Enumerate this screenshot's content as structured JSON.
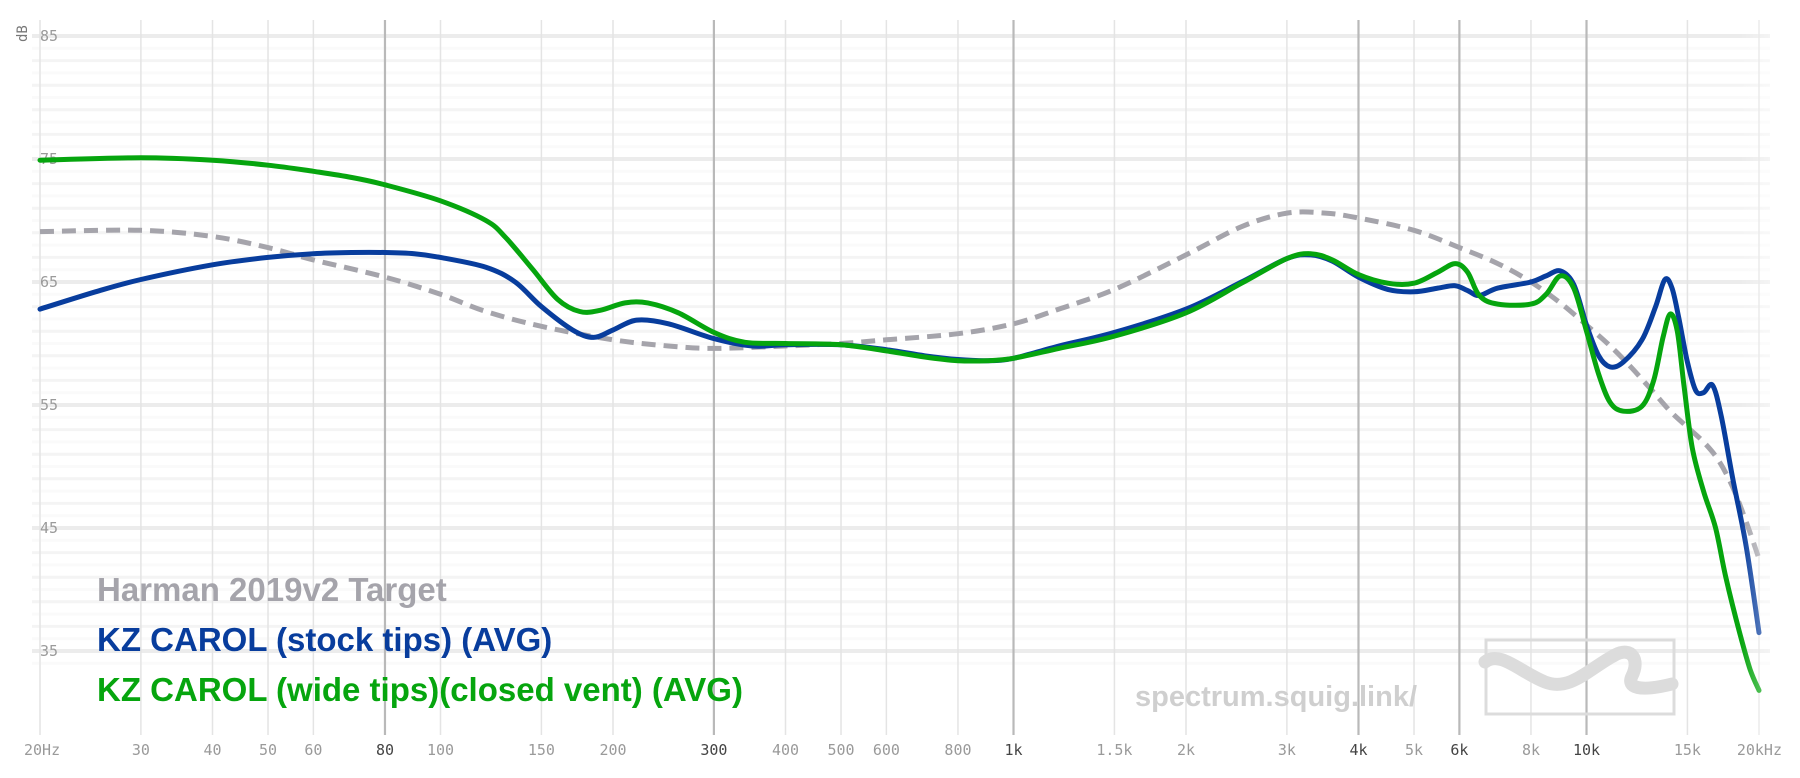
{
  "chart_data": {
    "type": "line",
    "ylabel": "dB",
    "xscale": "log",
    "xlim": [
      20,
      20000
    ],
    "ylim": [
      30,
      86
    ],
    "y_ticks": [
      {
        "value": 85,
        "label": "85"
      },
      {
        "value": 75,
        "label": "75"
      },
      {
        "value": 65,
        "label": "65"
      },
      {
        "value": 55,
        "label": "55"
      },
      {
        "value": 45,
        "label": "45"
      },
      {
        "value": 35,
        "label": "35"
      }
    ],
    "x_ticks": [
      {
        "value": 20,
        "label": "20Hz",
        "major": false
      },
      {
        "value": 30,
        "label": "30",
        "major": false
      },
      {
        "value": 40,
        "label": "40",
        "major": false
      },
      {
        "value": 50,
        "label": "50",
        "major": false
      },
      {
        "value": 60,
        "label": "60",
        "major": false
      },
      {
        "value": 80,
        "label": "80",
        "major": true
      },
      {
        "value": 100,
        "label": "100",
        "major": false
      },
      {
        "value": 150,
        "label": "150",
        "major": false
      },
      {
        "value": 200,
        "label": "200",
        "major": false
      },
      {
        "value": 300,
        "label": "300",
        "major": true
      },
      {
        "value": 400,
        "label": "400",
        "major": false
      },
      {
        "value": 500,
        "label": "500",
        "major": false
      },
      {
        "value": 600,
        "label": "600",
        "major": false
      },
      {
        "value": 800,
        "label": "800",
        "major": false
      },
      {
        "value": 1000,
        "label": "1k",
        "major": true
      },
      {
        "value": 1500,
        "label": "1.5k",
        "major": false
      },
      {
        "value": 2000,
        "label": "2k",
        "major": false
      },
      {
        "value": 3000,
        "label": "3k",
        "major": false
      },
      {
        "value": 4000,
        "label": "4k",
        "major": true
      },
      {
        "value": 5000,
        "label": "5k",
        "major": false
      },
      {
        "value": 6000,
        "label": "6k",
        "major": true
      },
      {
        "value": 8000,
        "label": "8k",
        "major": false
      },
      {
        "value": 10000,
        "label": "10k",
        "major": true
      },
      {
        "value": 15000,
        "label": "15k",
        "major": false
      },
      {
        "value": 20000,
        "label": "20kHz",
        "major": false
      }
    ],
    "legend_placement": "bottom-left",
    "series": [
      {
        "name": "Harman 2019v2 Target",
        "color": "#a5a4ab",
        "dashed": true,
        "points": [
          [
            20,
            69.1
          ],
          [
            30,
            69.2
          ],
          [
            40,
            68.7
          ],
          [
            50,
            67.8
          ],
          [
            60,
            66.8
          ],
          [
            80,
            65.4
          ],
          [
            100,
            64.0
          ],
          [
            120,
            62.6
          ],
          [
            150,
            61.4
          ],
          [
            200,
            60.3
          ],
          [
            250,
            59.8
          ],
          [
            300,
            59.6
          ],
          [
            400,
            59.8
          ],
          [
            500,
            60.0
          ],
          [
            600,
            60.3
          ],
          [
            800,
            60.8
          ],
          [
            1000,
            61.6
          ],
          [
            1200,
            62.8
          ],
          [
            1500,
            64.4
          ],
          [
            2000,
            67.2
          ],
          [
            2500,
            69.5
          ],
          [
            3000,
            70.6
          ],
          [
            3500,
            70.6
          ],
          [
            4000,
            70.2
          ],
          [
            5000,
            69.2
          ],
          [
            6000,
            67.8
          ],
          [
            7000,
            66.5
          ],
          [
            8000,
            65.0
          ],
          [
            9000,
            63.3
          ],
          [
            10000,
            61.5
          ],
          [
            11000,
            59.8
          ],
          [
            12000,
            58.0
          ],
          [
            13000,
            56.2
          ],
          [
            14000,
            54.5
          ],
          [
            15000,
            53.2
          ],
          [
            16000,
            52.0
          ],
          [
            17000,
            50.5
          ],
          [
            18000,
            48.3
          ],
          [
            19000,
            45.5
          ],
          [
            20000,
            42.5
          ]
        ]
      },
      {
        "name": "KZ CAROL (stock tips) (AVG)",
        "color": "#083d9d",
        "dashed": false,
        "points": [
          [
            20,
            62.8
          ],
          [
            25,
            64.2
          ],
          [
            30,
            65.2
          ],
          [
            40,
            66.4
          ],
          [
            50,
            67.0
          ],
          [
            60,
            67.3
          ],
          [
            70,
            67.4
          ],
          [
            80,
            67.4
          ],
          [
            90,
            67.3
          ],
          [
            100,
            67.0
          ],
          [
            120,
            66.2
          ],
          [
            135,
            65.0
          ],
          [
            150,
            63.0
          ],
          [
            170,
            61.1
          ],
          [
            185,
            60.5
          ],
          [
            200,
            61.1
          ],
          [
            220,
            61.9
          ],
          [
            250,
            61.6
          ],
          [
            300,
            60.4
          ],
          [
            350,
            59.8
          ],
          [
            400,
            59.9
          ],
          [
            500,
            59.9
          ],
          [
            600,
            59.5
          ],
          [
            700,
            59.0
          ],
          [
            800,
            58.7
          ],
          [
            900,
            58.6
          ],
          [
            1000,
            58.8
          ],
          [
            1200,
            59.8
          ],
          [
            1500,
            60.9
          ],
          [
            2000,
            62.8
          ],
          [
            2500,
            65.0
          ],
          [
            3000,
            66.9
          ],
          [
            3300,
            67.2
          ],
          [
            3600,
            66.7
          ],
          [
            4000,
            65.4
          ],
          [
            4500,
            64.4
          ],
          [
            5000,
            64.2
          ],
          [
            5500,
            64.5
          ],
          [
            5900,
            64.7
          ],
          [
            6200,
            64.3
          ],
          [
            6500,
            63.9
          ],
          [
            7000,
            64.5
          ],
          [
            8000,
            65.0
          ],
          [
            8500,
            65.5
          ],
          [
            9000,
            65.9
          ],
          [
            9500,
            64.8
          ],
          [
            10000,
            61.5
          ],
          [
            10500,
            59.0
          ],
          [
            11000,
            58.1
          ],
          [
            11600,
            58.5
          ],
          [
            12500,
            60.3
          ],
          [
            13200,
            63.0
          ],
          [
            13700,
            65.2
          ],
          [
            14100,
            64.5
          ],
          [
            14500,
            62.0
          ],
          [
            15000,
            58.5
          ],
          [
            15500,
            56.2
          ],
          [
            16000,
            56.0
          ],
          [
            16600,
            56.6
          ],
          [
            17200,
            54.0
          ],
          [
            18000,
            49.0
          ],
          [
            19000,
            43.5
          ],
          [
            20000,
            36.5
          ]
        ]
      },
      {
        "name": "KZ CAROL (wide tips)(closed vent) (AVG)",
        "color": "#06a50e",
        "dashed": false,
        "points": [
          [
            20,
            74.9
          ],
          [
            30,
            75.1
          ],
          [
            40,
            74.9
          ],
          [
            50,
            74.5
          ],
          [
            60,
            74.0
          ],
          [
            70,
            73.5
          ],
          [
            80,
            72.9
          ],
          [
            100,
            71.6
          ],
          [
            120,
            70.0
          ],
          [
            130,
            68.6
          ],
          [
            145,
            66.0
          ],
          [
            160,
            63.6
          ],
          [
            175,
            62.6
          ],
          [
            190,
            62.7
          ],
          [
            210,
            63.3
          ],
          [
            230,
            63.3
          ],
          [
            260,
            62.5
          ],
          [
            300,
            60.9
          ],
          [
            340,
            60.1
          ],
          [
            400,
            60.0
          ],
          [
            500,
            59.9
          ],
          [
            600,
            59.4
          ],
          [
            700,
            58.9
          ],
          [
            800,
            58.6
          ],
          [
            900,
            58.6
          ],
          [
            1000,
            58.8
          ],
          [
            1200,
            59.6
          ],
          [
            1500,
            60.6
          ],
          [
            2000,
            62.5
          ],
          [
            2500,
            64.9
          ],
          [
            3000,
            66.9
          ],
          [
            3300,
            67.3
          ],
          [
            3600,
            66.8
          ],
          [
            4000,
            65.6
          ],
          [
            4500,
            64.9
          ],
          [
            5000,
            64.9
          ],
          [
            5500,
            65.8
          ],
          [
            5900,
            66.5
          ],
          [
            6200,
            65.8
          ],
          [
            6500,
            63.9
          ],
          [
            7000,
            63.2
          ],
          [
            8000,
            63.2
          ],
          [
            8500,
            64.0
          ],
          [
            9000,
            65.5
          ],
          [
            9500,
            64.5
          ],
          [
            10000,
            61.0
          ],
          [
            10500,
            57.5
          ],
          [
            11000,
            55.2
          ],
          [
            11600,
            54.5
          ],
          [
            12500,
            54.9
          ],
          [
            13100,
            57.0
          ],
          [
            13600,
            60.5
          ],
          [
            14000,
            62.4
          ],
          [
            14400,
            61.0
          ],
          [
            14800,
            56.5
          ],
          [
            15300,
            51.5
          ],
          [
            16000,
            48.0
          ],
          [
            16800,
            45.0
          ],
          [
            17500,
            41.0
          ],
          [
            18500,
            36.5
          ],
          [
            19300,
            33.5
          ],
          [
            20000,
            31.8
          ]
        ]
      }
    ]
  },
  "watermark": {
    "text": "spectrum.squig.link/"
  }
}
